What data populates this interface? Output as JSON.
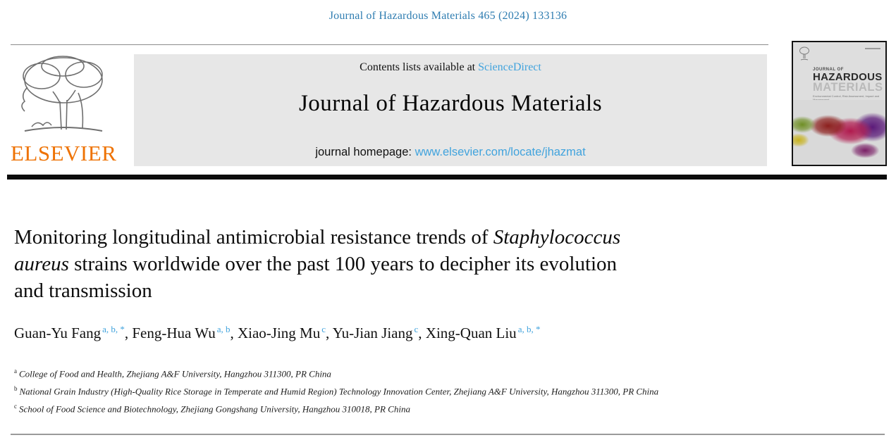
{
  "header": {
    "citation": "Journal of Hazardous Materials 465 (2024) 133136",
    "elsevier_label": "ELSEVIER"
  },
  "banner": {
    "contents_prefix": "Contents lists available at ",
    "sciencedirect_label": "ScienceDirect",
    "journal_title": "Journal of Hazardous Materials",
    "homepage_prefix": "journal homepage: ",
    "homepage_url": "www.elsevier.com/locate/jhazmat"
  },
  "cover": {
    "journal_of": "JOURNAL OF",
    "title_line1": "HAZARDOUS",
    "title_line2": "MATERIALS",
    "subtitle": "Environmental Control, Risk Assessment, Impact and Management"
  },
  "article": {
    "title_lines": [
      [
        {
          "text": "Monitoring longitudinal antimicrobial resistance trends of ",
          "italic": false
        },
        {
          "text": "Staphylococcus",
          "italic": true
        }
      ],
      [
        {
          "text": "aureus",
          "italic": true
        },
        {
          "text": " strains worldwide over the past 100 years to decipher its evolution",
          "italic": false
        }
      ],
      [
        {
          "text": "and transmission",
          "italic": false
        }
      ]
    ],
    "authors": [
      {
        "name": "Guan-Yu Fang",
        "sup": "a, b, *"
      },
      {
        "name": "Feng-Hua Wu",
        "sup": "a, b"
      },
      {
        "name": "Xiao-Jing Mu",
        "sup": "c"
      },
      {
        "name": "Yu-Jian Jiang",
        "sup": "c"
      },
      {
        "name": "Xing-Quan Liu",
        "sup": "a, b, *"
      }
    ],
    "author_separator": ", ",
    "affiliations": [
      {
        "sup": "a",
        "text": "College of Food and Health, Zhejiang A&F University, Hangzhou 311300, PR China"
      },
      {
        "sup": "b",
        "text": "National Grain Industry (High-Quality Rice Storage in Temperate and Humid Region) Technology Innovation Center, Zhejiang A&F University, Hangzhou 311300, PR China"
      },
      {
        "sup": "c",
        "text": "School of Food Science and Biotechnology, Zhejiang Gongshang University, Hangzhou 310018, PR China"
      }
    ]
  },
  "colors": {
    "citation_blue": "#2f7db1",
    "link_blue": "#41a3dd",
    "elsevier_orange": "#ee7203",
    "banner_gray": "#e7e7e7"
  }
}
